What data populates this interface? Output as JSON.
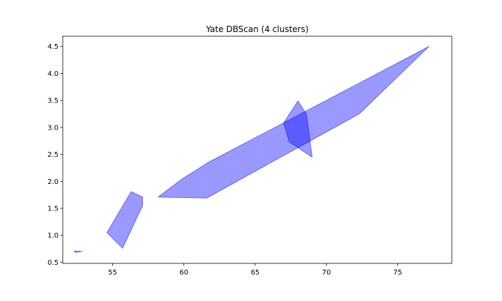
{
  "chart_data": {
    "type": "area",
    "title": "Yate DBScan (4 clusters)",
    "xlabel": "",
    "ylabel": "",
    "xlim": [
      51.5,
      78.8
    ],
    "ylim": [
      0.48,
      4.69
    ],
    "xticks": [
      55,
      60,
      65,
      70,
      75
    ],
    "yticks": [
      0.5,
      1.0,
      1.5,
      2.0,
      2.5,
      3.0,
      3.5,
      4.0,
      4.5
    ],
    "xtick_labels": [
      "55",
      "60",
      "65",
      "70",
      "75"
    ],
    "ytick_labels": [
      "0.5",
      "1.0",
      "1.5",
      "2.0",
      "2.5",
      "3.0",
      "3.5",
      "4.0",
      "4.5"
    ],
    "grid": false,
    "legend": "none",
    "fill_color": "#0000ff",
    "fill_opacity": 0.4,
    "clusters": [
      {
        "points": [
          [
            52.3,
            0.71
          ],
          [
            52.9,
            0.7
          ],
          [
            52.4,
            0.68
          ]
        ]
      },
      {
        "points": [
          [
            54.6,
            1.05
          ],
          [
            56.3,
            1.81
          ],
          [
            57.1,
            1.71
          ],
          [
            57.1,
            1.55
          ],
          [
            55.7,
            0.76
          ]
        ]
      },
      {
        "points": [
          [
            58.2,
            1.71
          ],
          [
            59.8,
            2.03
          ],
          [
            61.7,
            2.35
          ],
          [
            77.2,
            4.5
          ],
          [
            72.3,
            3.25
          ],
          [
            61.6,
            1.69
          ]
        ]
      },
      {
        "points": [
          [
            67.0,
            3.08
          ],
          [
            68.0,
            3.49
          ],
          [
            68.6,
            3.25
          ],
          [
            69.0,
            2.45
          ],
          [
            67.4,
            2.73
          ]
        ]
      }
    ]
  }
}
